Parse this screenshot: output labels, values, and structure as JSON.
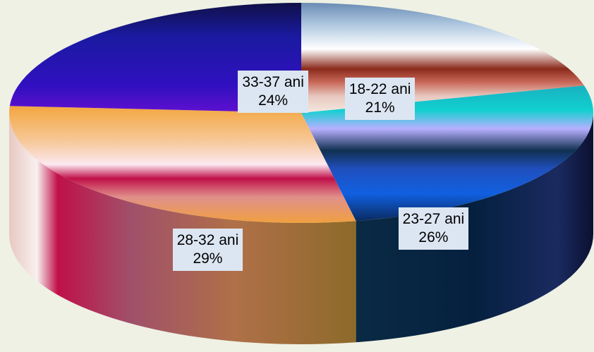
{
  "background": "#eef1e4",
  "chart_data": {
    "type": "pie",
    "style": "3d",
    "categories": [
      "18-22 ani",
      "23-27 ani",
      "28-32 ani",
      "33-37 ani"
    ],
    "values": [
      21,
      26,
      29,
      24
    ],
    "value_labels": [
      "21%",
      "26%",
      "29%",
      "24%"
    ],
    "unit": "%",
    "legend": "none",
    "title": ""
  }
}
